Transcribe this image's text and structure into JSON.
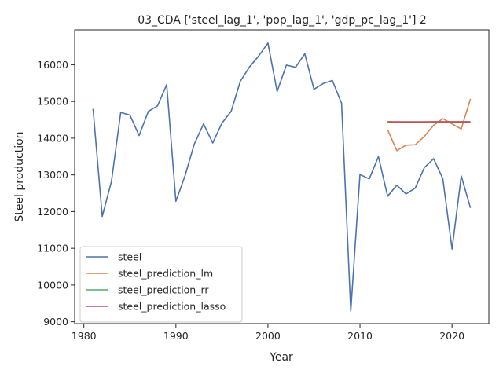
{
  "chart_data": {
    "type": "line",
    "title": "03_CDA ['steel_lag_1', 'pop_lag_1', 'gdp_pc_lag_1'] 2",
    "xlabel": "Year",
    "ylabel": "Steel production",
    "xlim": [
      1979,
      2024
    ],
    "ylim": [
      8950,
      16950
    ],
    "xticks": [
      1980,
      1990,
      2000,
      2010,
      2020
    ],
    "yticks": [
      9000,
      10000,
      11000,
      12000,
      13000,
      14000,
      15000,
      16000
    ],
    "grid": false,
    "legend_position": "lower-left",
    "series": [
      {
        "name": "steel",
        "color": "#4c72b0",
        "x": [
          1981,
          1982,
          1983,
          1984,
          1985,
          1986,
          1987,
          1988,
          1989,
          1990,
          1991,
          1992,
          1993,
          1994,
          1995,
          1996,
          1997,
          1998,
          1999,
          2000,
          2001,
          2002,
          2003,
          2004,
          2005,
          2006,
          2007,
          2008,
          2009,
          2010,
          2011,
          2012,
          2013,
          2014,
          2015,
          2016,
          2017,
          2018,
          2019,
          2020,
          2021,
          2022
        ],
        "y": [
          14800,
          11870,
          12820,
          14700,
          14630,
          14070,
          14730,
          14880,
          15460,
          12280,
          12980,
          13840,
          14390,
          13870,
          14410,
          14730,
          15550,
          15940,
          16240,
          16590,
          15270,
          15990,
          15930,
          16300,
          15330,
          15490,
          15570,
          14950,
          9290,
          13010,
          12890,
          13500,
          12420,
          12720,
          12480,
          12640,
          13200,
          13440,
          12900,
          10980,
          12970,
          12100
        ]
      },
      {
        "name": "steel_prediction_lm",
        "color": "#dd8452",
        "x": [
          2013,
          2014,
          2015,
          2016,
          2017,
          2018,
          2019,
          2020,
          2021,
          2022
        ],
        "y": [
          14230,
          13660,
          13810,
          13820,
          14050,
          14350,
          14530,
          14390,
          14250,
          15070
        ]
      },
      {
        "name": "steel_prediction_rr",
        "color": "#55a868",
        "x": [
          2013,
          2014,
          2015,
          2016,
          2017,
          2018,
          2019,
          2020,
          2021,
          2022
        ],
        "y": [
          14440,
          14430,
          14430,
          14430,
          14430,
          14440,
          14440,
          14440,
          14440,
          14440
        ]
      },
      {
        "name": "steel_prediction_lasso",
        "color": "#c44e52",
        "x": [
          2013,
          2014,
          2015,
          2016,
          2017,
          2018,
          2019,
          2020,
          2021,
          2022
        ],
        "y": [
          14450,
          14445,
          14445,
          14445,
          14445,
          14450,
          14450,
          14450,
          14450,
          14450
        ]
      }
    ]
  }
}
